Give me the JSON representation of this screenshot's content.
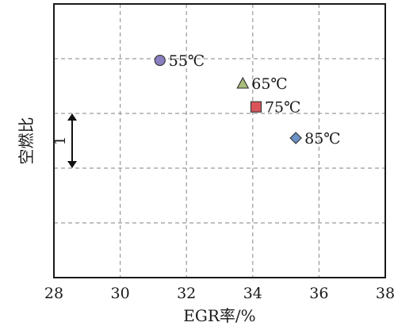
{
  "chart_data": {
    "type": "scatter",
    "title": "",
    "xlabel": "EGR率/%",
    "ylabel": "空燃比",
    "xlim": [
      28,
      38
    ],
    "x_ticks": [
      "28",
      "30",
      "32",
      "34",
      "36",
      "38"
    ],
    "y_ticks_labeled": false,
    "ylim": [
      0,
      5
    ],
    "grid": true,
    "grid_style": "dashed",
    "scale_bar": {
      "label": "1",
      "from": 2,
      "to": 3
    },
    "points": [
      {
        "label": "55℃",
        "x": 31.2,
        "y": 3.97,
        "marker": "circle",
        "color": "#8a7fc0"
      },
      {
        "label": "65℃",
        "x": 33.7,
        "y": 3.55,
        "marker": "triangle",
        "color": "#a9bf7a"
      },
      {
        "label": "75℃",
        "x": 34.1,
        "y": 3.12,
        "marker": "square",
        "color": "#d9555a"
      },
      {
        "label": "85℃",
        "x": 35.3,
        "y": 2.55,
        "marker": "diamond",
        "color": "#6a93c9"
      }
    ]
  }
}
